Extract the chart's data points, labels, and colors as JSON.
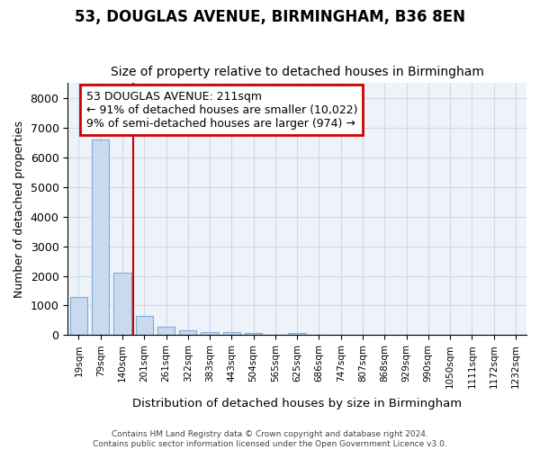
{
  "title": "53, DOUGLAS AVENUE, BIRMINGHAM, B36 8EN",
  "subtitle": "Size of property relative to detached houses in Birmingham",
  "xlabel": "Distribution of detached houses by size in Birmingham",
  "ylabel": "Number of detached properties",
  "annotation_text": "53 DOUGLAS AVENUE: 211sqm\n← 91% of detached houses are smaller (10,022)\n9% of semi-detached houses are larger (974) →",
  "footer1": "Contains HM Land Registry data © Crown copyright and database right 2024.",
  "footer2": "Contains public sector information licensed under the Open Government Licence v3.0.",
  "property_size_bin_index": 2.5,
  "categories": [
    "19sqm",
    "79sqm",
    "140sqm",
    "201sqm",
    "261sqm",
    "322sqm",
    "383sqm",
    "443sqm",
    "504sqm",
    "565sqm",
    "625sqm",
    "686sqm",
    "747sqm",
    "807sqm",
    "868sqm",
    "929sqm",
    "990sqm",
    "1050sqm",
    "1111sqm",
    "1172sqm",
    "1232sqm"
  ],
  "values": [
    1300,
    6600,
    2100,
    650,
    300,
    150,
    100,
    100,
    80,
    0,
    80,
    0,
    0,
    0,
    0,
    0,
    0,
    0,
    0,
    0,
    0
  ],
  "bar_color": "#c9d9ef",
  "bar_edge_color": "#7bafd4",
  "highlight_line_color": "#cc0000",
  "annotation_box_color": "#cc0000",
  "grid_color": "#d0d8e8",
  "background_color": "#eef2f9",
  "ylim": [
    0,
    8500
  ],
  "title_fontsize": 12,
  "subtitle_fontsize": 10,
  "figsize": [
    6.0,
    5.0
  ],
  "dpi": 100
}
